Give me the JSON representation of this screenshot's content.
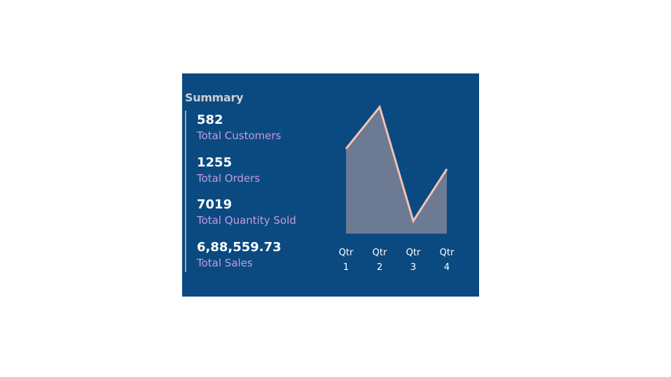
{
  "summary": {
    "title": "Summary",
    "kpis": [
      {
        "value": "582",
        "label": "Total Customers"
      },
      {
        "value": "1255",
        "label": "Total Orders"
      },
      {
        "value": "7019",
        "label": "Total Quantity Sold"
      },
      {
        "value": "6,88,559.73",
        "label": "Total Sales"
      }
    ]
  },
  "colors": {
    "card_background": "#0b4a80",
    "line": "#f2c2b2",
    "area": "#6c7a94",
    "kpi_label": "#c49be0"
  },
  "chart_data": {
    "type": "area",
    "categories": [
      [
        "Qtr",
        "1"
      ],
      [
        "Qtr",
        "2"
      ],
      [
        "Qtr",
        "3"
      ],
      [
        "Qtr",
        "4"
      ]
    ],
    "values": [
      0.67,
      1.0,
      0.1,
      0.51
    ],
    "ylim": [
      0,
      1
    ],
    "grid": false,
    "axes_visible": false
  }
}
